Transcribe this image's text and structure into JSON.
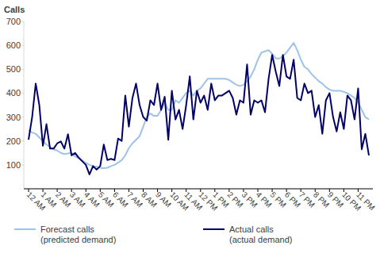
{
  "chart_data": {
    "type": "line",
    "y_label": "Calls",
    "categories": [
      "12 AM",
      null,
      null,
      null,
      "1 AM",
      null,
      null,
      null,
      "2 AM",
      null,
      null,
      null,
      "3 AM",
      null,
      null,
      null,
      "4 AM",
      null,
      null,
      null,
      "5 AM",
      null,
      null,
      null,
      "6 AM",
      null,
      null,
      null,
      "7 AM",
      null,
      null,
      null,
      "8 AM",
      null,
      null,
      null,
      "9 AM",
      null,
      null,
      null,
      "10 AM",
      null,
      null,
      null,
      "11 AM",
      null,
      null,
      null,
      "12 PM",
      null,
      null,
      null,
      "1 PM",
      null,
      null,
      null,
      "2 PM",
      null,
      null,
      null,
      "3 PM",
      null,
      null,
      null,
      "4 PM",
      null,
      null,
      null,
      "5 PM",
      null,
      null,
      null,
      "6 PM",
      null,
      null,
      null,
      "7 PM",
      null,
      null,
      null,
      "8 PM",
      null,
      null,
      null,
      "9 PM",
      null,
      null,
      null,
      "10 PM",
      null,
      null,
      null,
      "11 PM",
      null,
      null,
      null
    ],
    "series": [
      {
        "name": "Forecast calls (predicted demand)",
        "color": "#9dc3e6",
        "values": [
          245,
          235,
          230,
          215,
          200,
          185,
          175,
          165,
          160,
          150,
          145,
          148,
          150,
          135,
          128,
          118,
          108,
          100,
          95,
          92,
          88,
          86,
          88,
          95,
          100,
          110,
          120,
          140,
          170,
          190,
          205,
          220,
          260,
          300,
          315,
          305,
          305,
          330,
          360,
          330,
          330,
          370,
          360,
          380,
          400,
          410,
          390,
          410,
          420,
          440,
          460,
          460,
          460,
          460,
          460,
          460,
          455,
          445,
          435,
          430,
          435,
          450,
          470,
          500,
          540,
          570,
          575,
          580,
          565,
          545,
          545,
          555,
          570,
          590,
          610,
          580,
          540,
          510,
          500,
          480,
          465,
          450,
          440,
          425,
          415,
          410,
          410,
          410,
          405,
          400,
          390,
          380,
          360,
          330,
          300,
          290
        ]
      },
      {
        "name": "Actual calls (actual demand)",
        "color": "#000066",
        "values": [
          205,
          300,
          440,
          350,
          180,
          270,
          168,
          168,
          190,
          198,
          168,
          228,
          140,
          150,
          130,
          115,
          100,
          60,
          95,
          80,
          95,
          185,
          120,
          125,
          120,
          210,
          200,
          390,
          260,
          380,
          440,
          350,
          300,
          285,
          370,
          350,
          440,
          330,
          385,
          205,
          410,
          290,
          330,
          250,
          350,
          470,
          290,
          410,
          360,
          390,
          330,
          440,
          370,
          390,
          390,
          400,
          410,
          380,
          310,
          370,
          360,
          520,
          310,
          370,
          360,
          370,
          320,
          460,
          560,
          490,
          430,
          560,
          470,
          460,
          540,
          380,
          370,
          440,
          400,
          410,
          300,
          350,
          230,
          370,
          400,
          300,
          240,
          320,
          250,
          390,
          370,
          290,
          420,
          165,
          230,
          140
        ]
      }
    ],
    "ylim": [
      0,
      700
    ],
    "yticks": [
      100,
      200,
      300,
      400,
      500,
      600,
      700
    ],
    "grid": false,
    "legend": "bottom"
  }
}
